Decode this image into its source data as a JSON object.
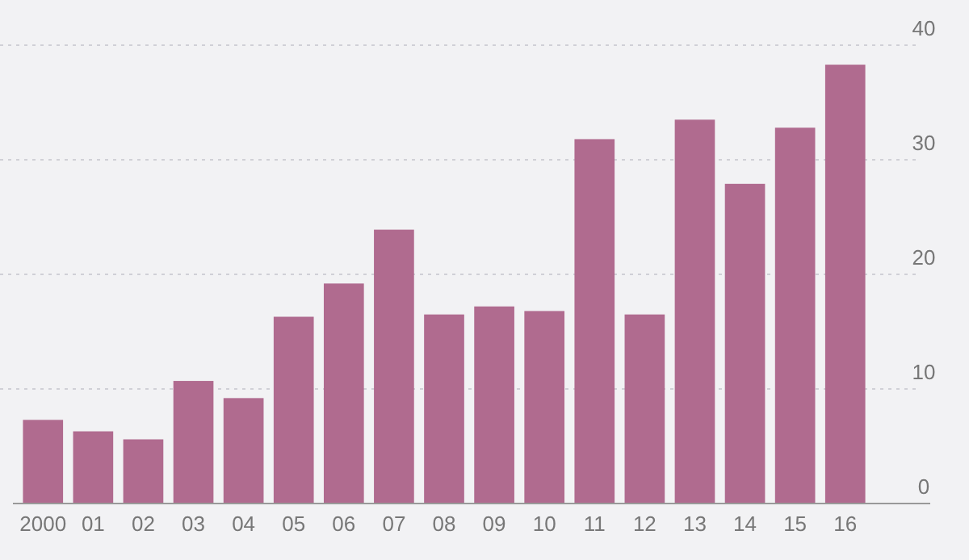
{
  "chart_data": {
    "type": "bar",
    "categories": [
      "2000",
      "01",
      "02",
      "03",
      "04",
      "05",
      "06",
      "07",
      "08",
      "09",
      "10",
      "11",
      "12",
      "13",
      "14",
      "15",
      "16"
    ],
    "values": [
      7.3,
      6.3,
      5.6,
      10.7,
      9.2,
      16.3,
      19.2,
      23.9,
      16.5,
      17.2,
      16.8,
      31.8,
      16.5,
      33.5,
      27.9,
      32.8,
      38.3
    ],
    "color": "#b06b8f",
    "ylim": [
      0,
      40
    ],
    "yticks": [
      0,
      10,
      20,
      30,
      40
    ],
    "grid": "y"
  }
}
